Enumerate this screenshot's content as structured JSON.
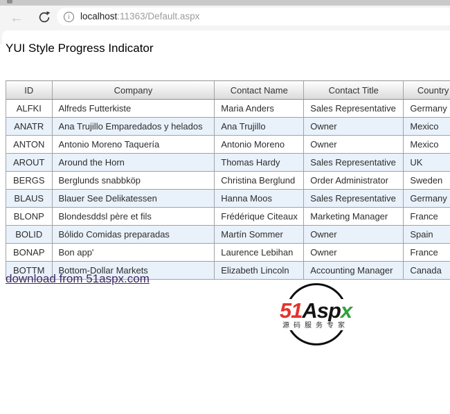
{
  "browser": {
    "back_icon": "←",
    "info_icon": "i",
    "url_host": "localhost",
    "url_path": ":11363/Default.aspx"
  },
  "page": {
    "title": "YUI Style Progress Indicator",
    "download_link": "download from 51aspx.com"
  },
  "table": {
    "columns": [
      "ID",
      "Company",
      "Contact Name",
      "Contact Title",
      "Country"
    ],
    "rows": [
      [
        "ALFKI",
        "Alfreds Futterkiste",
        "Maria Anders",
        "Sales Representative",
        "Germany"
      ],
      [
        "ANATR",
        "Ana Trujillo Emparedados y helados",
        "Ana Trujillo",
        "Owner",
        "Mexico"
      ],
      [
        "ANTON",
        "Antonio Moreno Taquería",
        "Antonio Moreno",
        "Owner",
        "Mexico"
      ],
      [
        "AROUT",
        "Around the Horn",
        "Thomas Hardy",
        "Sales Representative",
        "UK"
      ],
      [
        "BERGS",
        "Berglunds snabbköp",
        "Christina Berglund",
        "Order Administrator",
        "Sweden"
      ],
      [
        "BLAUS",
        "Blauer See Delikatessen",
        "Hanna Moos",
        "Sales Representative",
        "Germany"
      ],
      [
        "BLONP",
        "Blondesddsl père et fils",
        "Frédérique Citeaux",
        "Marketing Manager",
        "France"
      ],
      [
        "BOLID",
        "Bólido Comidas preparadas",
        "Martín Sommer",
        "Owner",
        "Spain"
      ],
      [
        "BONAP",
        "Bon app'",
        "Laurence Lebihan",
        "Owner",
        "France"
      ],
      [
        "BOTTM",
        "Bottom-Dollar Markets",
        "Elizabeth Lincoln",
        "Accounting Manager",
        "Canada"
      ]
    ]
  },
  "logo": {
    "text_51": "51",
    "text_asp": "Asp",
    "text_x": "x",
    "subtitle": "源码服务专家"
  },
  "colors": {
    "alt_row": "#e9f1fa",
    "link": "#3e2963",
    "logo_red": "#e2342c",
    "logo_green": "#2ea23c",
    "table_border": "#a2a2a2"
  }
}
